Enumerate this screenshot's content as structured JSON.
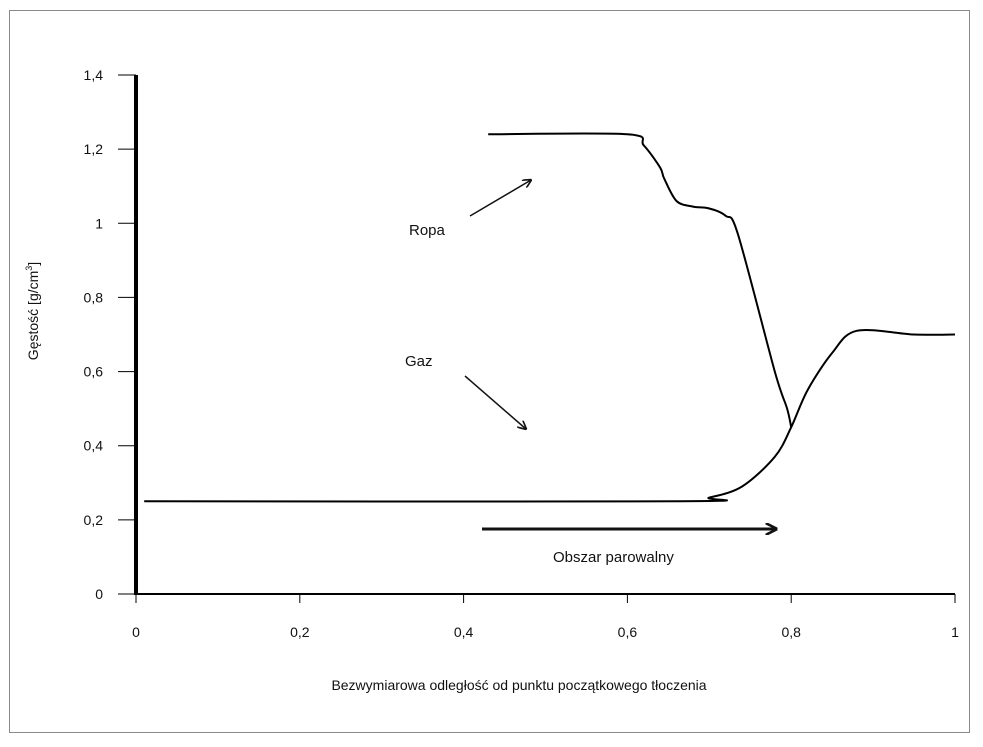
{
  "chart_data": {
    "type": "line",
    "xlabel": "Bezwymiarowa odległość od punktu początkowego tłoczenia",
    "ylabel_main": "Gęstość [g/cm",
    "ylabel_sup": "3",
    "ylabel_close": "]",
    "xlim": [
      0,
      1
    ],
    "ylim": [
      0,
      1.4
    ],
    "grid": false,
    "x_ticks": [
      0,
      0.2,
      0.4,
      0.6,
      0.8,
      1
    ],
    "x_tick_labels": [
      "0",
      "0,2",
      "0,4",
      "0,6",
      "0,8",
      "1"
    ],
    "y_ticks": [
      0,
      0.2,
      0.4,
      0.6,
      0.8,
      1,
      1.2,
      1.4
    ],
    "y_tick_labels": [
      "0",
      "0,2",
      "0,4",
      "0,6",
      "0,8",
      "1",
      "1,2",
      "1,4"
    ],
    "series": [
      {
        "name": "Ropa",
        "x": [
          0.43,
          0.6,
          0.62,
          0.64,
          0.645,
          0.66,
          0.68,
          0.7,
          0.72,
          0.735,
          0.78,
          0.795,
          0.8
        ],
        "y": [
          1.24,
          1.24,
          1.21,
          1.15,
          1.12,
          1.06,
          1.045,
          1.04,
          1.02,
          0.97,
          0.6,
          0.5,
          0.45
        ]
      },
      {
        "name": "Gaz",
        "x": [
          0.01,
          0.665,
          0.7,
          0.74,
          0.78,
          0.8,
          0.82,
          0.85,
          0.88,
          0.95,
          1.0
        ],
        "y": [
          0.25,
          0.25,
          0.26,
          0.29,
          0.37,
          0.45,
          0.55,
          0.65,
          0.71,
          0.7,
          0.7
        ]
      }
    ],
    "annotations": {
      "ropa_label": "Ropa",
      "gaz_label": "Gaz",
      "region_label": "Obszar parowalny"
    }
  }
}
